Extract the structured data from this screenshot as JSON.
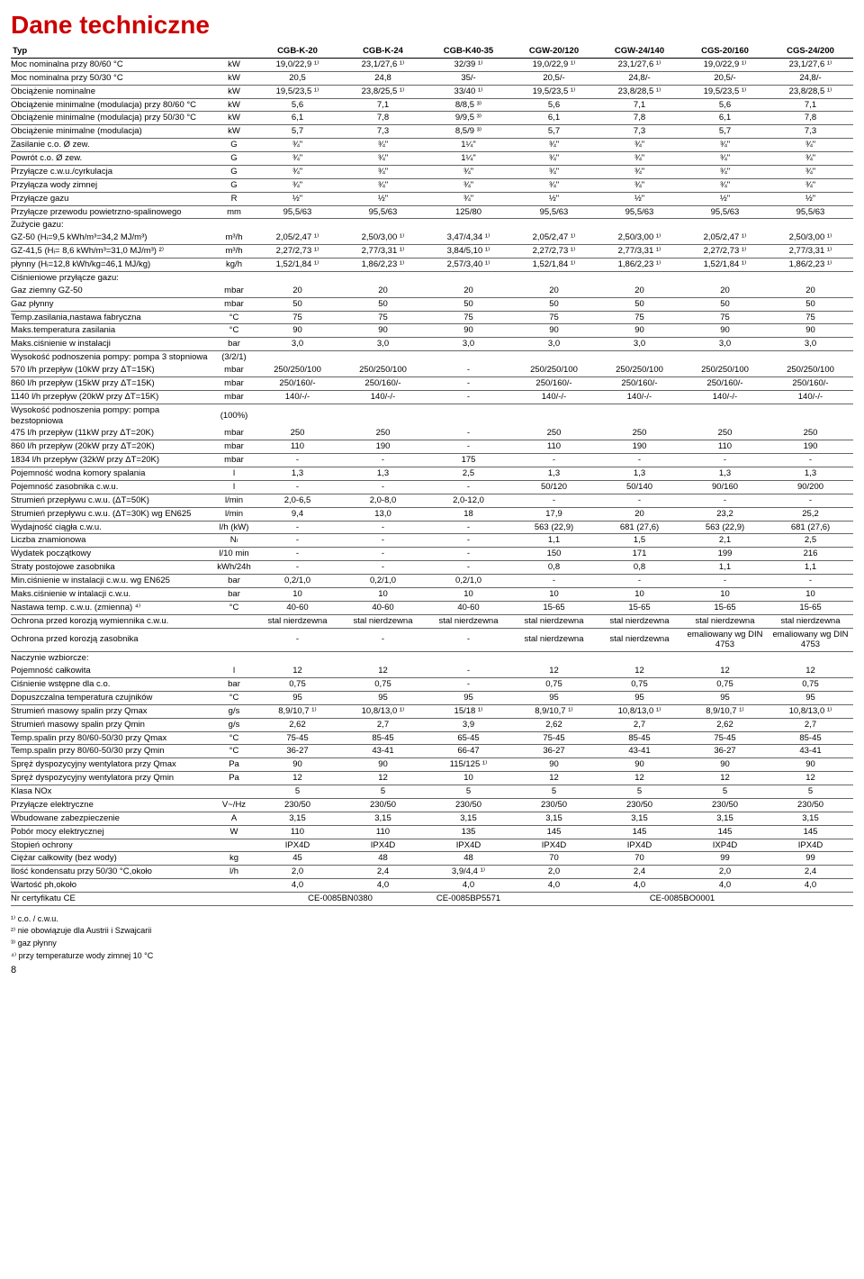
{
  "title": "Dane techniczne",
  "header": {
    "c0": "Typ",
    "c1": "",
    "c2": "CGB-K-20",
    "c3": "CGB-K-24",
    "c4": "CGB-K40-35",
    "c5": "CGW-20/120",
    "c6": "CGW-24/140",
    "c7": "CGS-20/160",
    "c8": "CGS-24/200"
  },
  "rows": [
    {
      "l": "Moc nominalna przy 80/60 °C",
      "u": "kW",
      "v": [
        "19,0/22,9 ¹⁾",
        "23,1/27,6 ¹⁾",
        "32/39 ¹⁾",
        "19,0/22,9 ¹⁾",
        "23,1/27,6 ¹⁾",
        "19,0/22,9 ¹⁾",
        "23,1/27,6 ¹⁾"
      ]
    },
    {
      "l": "Moc nominalna przy 50/30 °C",
      "u": "kW",
      "v": [
        "20,5",
        "24,8",
        "35/-",
        "20,5/-",
        "24,8/-",
        "20,5/-",
        "24,8/-"
      ]
    },
    {
      "l": "Obciążenie nominalne",
      "u": "kW",
      "v": [
        "19,5/23,5 ¹⁾",
        "23,8/25,5 ¹⁾",
        "33/40 ¹⁾",
        "19,5/23,5 ¹⁾",
        "23,8/28,5 ¹⁾",
        "19,5/23,5 ¹⁾",
        "23,8/28,5 ¹⁾"
      ]
    },
    {
      "l": "Obciążenie minimalne (modulacja) przy 80/60 °C",
      "u": "kW",
      "v": [
        "5,6",
        "7,1",
        "8/8,5 ³⁾",
        "5,6",
        "7,1",
        "5,6",
        "7,1"
      ]
    },
    {
      "l": "Obciążenie minimalne (modulacja) przy 50/30 °C",
      "u": "kW",
      "v": [
        "6,1",
        "7,8",
        "9/9,5 ³⁾",
        "6,1",
        "7,8",
        "6,1",
        "7,8"
      ]
    },
    {
      "l": "Obciążenie minimalne (modulacja)",
      "u": "kW",
      "v": [
        "5,7",
        "7,3",
        "8,5/9 ³⁾",
        "5,7",
        "7,3",
        "5,7",
        "7,3"
      ]
    },
    {
      "l": "Zasilanie c.o. Ø zew.",
      "u": "G",
      "v": [
        "¾\"",
        "¾\"",
        "1¼\"",
        "¾\"",
        "¾\"",
        "¾\"",
        "¾\""
      ]
    },
    {
      "l": "Powrót c.o. Ø zew.",
      "u": "G",
      "v": [
        "¾\"",
        "¾\"",
        "1¼\"",
        "¾\"",
        "¾\"",
        "¾\"",
        "¾\""
      ]
    },
    {
      "l": "Przyłącze c.w.u./cyrkulacja",
      "u": "G",
      "v": [
        "¾\"",
        "¾\"",
        "¾\"",
        "¾\"",
        "¾\"",
        "¾\"",
        "¾\""
      ]
    },
    {
      "l": "Przyłącza wody zimnej",
      "u": "G",
      "v": [
        "¾\"",
        "¾\"",
        "¾\"",
        "¾\"",
        "¾\"",
        "¾\"",
        "¾\""
      ]
    },
    {
      "l": "Przyłącze gazu",
      "u": "R",
      "v": [
        "½\"",
        "½\"",
        "¾\"",
        "½\"",
        "½\"",
        "½\"",
        "½\""
      ]
    },
    {
      "l": "Przyłącze przewodu powietrzno-spalinowego",
      "u": "mm",
      "v": [
        "95,5/63",
        "95,5/63",
        "125/80",
        "95,5/63",
        "95,5/63",
        "95,5/63",
        "95,5/63"
      ]
    },
    {
      "l": "Zużycie gazu:",
      "u": "",
      "v": [
        "",
        "",
        "",
        "",
        "",
        "",
        ""
      ],
      "nb": true
    },
    {
      "l": "GZ-50 (Hᵢ=9,5 kWh/m³=34,2 MJ/m³)",
      "u": "m³/h",
      "indent": true,
      "v": [
        "2,05/2,47 ¹⁾",
        "2,50/3,00 ¹⁾",
        "3,47/4,34 ¹⁾",
        "2,05/2,47 ¹⁾",
        "2,50/3,00 ¹⁾",
        "2,05/2,47 ¹⁾",
        "2,50/3,00 ¹⁾"
      ]
    },
    {
      "l": "GZ-41,5 (Hᵢ= 8,6 kWh/m³=31,0 MJ/m³) ²⁾",
      "u": "m³/h",
      "indent": true,
      "v": [
        "2,27/2,73 ¹⁾",
        "2,77/3,31 ¹⁾",
        "3,84/5,10 ¹⁾",
        "2,27/2,73 ¹⁾",
        "2,77/3,31 ¹⁾",
        "2,27/2,73 ¹⁾",
        "2,77/3,31 ¹⁾"
      ]
    },
    {
      "l": "płynny (Hᵢ=12,8 kWh/kg=46,1 MJ/kg)",
      "u": "kg/h",
      "indent": true,
      "v": [
        "1,52/1,84 ¹⁾",
        "1,86/2,23 ¹⁾",
        "2,57/3,40 ¹⁾",
        "1,52/1,84 ¹⁾",
        "1,86/2,23 ¹⁾",
        "1,52/1,84 ¹⁾",
        "1,86/2,23 ¹⁾"
      ]
    },
    {
      "l": "Ciśnieniowe przyłącze gazu:",
      "u": "",
      "v": [
        "",
        "",
        "",
        "",
        "",
        "",
        ""
      ],
      "nb": true
    },
    {
      "l": "Gaz ziemny GZ-50",
      "u": "mbar",
      "indent": true,
      "v": [
        "20",
        "20",
        "20",
        "20",
        "20",
        "20",
        "20"
      ]
    },
    {
      "l": "Gaz płynny",
      "u": "mbar",
      "indent": true,
      "v": [
        "50",
        "50",
        "50",
        "50",
        "50",
        "50",
        "50"
      ]
    },
    {
      "l": "Temp.zasilania,nastawa fabryczna",
      "u": "°C",
      "v": [
        "75",
        "75",
        "75",
        "75",
        "75",
        "75",
        "75"
      ]
    },
    {
      "l": "Maks.temperatura zasilania",
      "u": "°C",
      "v": [
        "90",
        "90",
        "90",
        "90",
        "90",
        "90",
        "90"
      ]
    },
    {
      "l": "Maks.ciśnienie w instalacji",
      "u": "bar",
      "v": [
        "3,0",
        "3,0",
        "3,0",
        "3,0",
        "3,0",
        "3,0",
        "3,0"
      ]
    },
    {
      "l": "Wysokość podnoszenia pompy: pompa 3 stopniowa",
      "u": "(3/2/1)",
      "v": [
        "",
        "",
        "",
        "",
        "",
        "",
        ""
      ],
      "nb": true
    },
    {
      "l": "570 l/h przepływ (10kW przy ΔT=15K)",
      "u": "mbar",
      "indent": true,
      "v": [
        "250/250/100",
        "250/250/100",
        "-",
        "250/250/100",
        "250/250/100",
        "250/250/100",
        "250/250/100"
      ]
    },
    {
      "l": "860 l/h przepływ (15kW przy ΔT=15K)",
      "u": "mbar",
      "indent": true,
      "v": [
        "250/160/-",
        "250/160/-",
        "-",
        "250/160/-",
        "250/160/-",
        "250/160/-",
        "250/160/-"
      ]
    },
    {
      "l": "1140 l/h przepływ (20kW przy ΔT=15K)",
      "u": "mbar",
      "indent": true,
      "v": [
        "140/-/-",
        "140/-/-",
        "-",
        "140/-/-",
        "140/-/-",
        "140/-/-",
        "140/-/-"
      ]
    },
    {
      "l": "Wysokość podnoszenia pompy: pompa bezstopniowa",
      "u": "(100%)",
      "v": [
        "",
        "",
        "",
        "",
        "",
        "",
        ""
      ],
      "nb": true
    },
    {
      "l": "475 l/h przepływ (11kW przy ΔT=20K)",
      "u": "mbar",
      "indent": true,
      "v": [
        "250",
        "250",
        "-",
        "250",
        "250",
        "250",
        "250"
      ]
    },
    {
      "l": "860 l/h przepływ (20kW przy ΔT=20K)",
      "u": "mbar",
      "indent": true,
      "v": [
        "110",
        "190",
        "-",
        "110",
        "190",
        "110",
        "190"
      ]
    },
    {
      "l": "1834 l/h przepływ (32kW przy ΔT=20K)",
      "u": "mbar",
      "indent": true,
      "v": [
        "-",
        "-",
        "175",
        "-",
        "-",
        "-",
        "-"
      ]
    },
    {
      "l": "Pojemność wodna komory spalania",
      "u": "l",
      "v": [
        "1,3",
        "1,3",
        "2,5",
        "1,3",
        "1,3",
        "1,3",
        "1,3"
      ]
    },
    {
      "l": "Pojemność zasobnika c.w.u.",
      "u": "l",
      "v": [
        "-",
        "-",
        "-",
        "50/120",
        "50/140",
        "90/160",
        "90/200"
      ]
    },
    {
      "l": "Strumień przepływu c.w.u. (ΔT=50K)",
      "u": "l/min",
      "v": [
        "2,0-6,5",
        "2,0-8,0",
        "2,0-12,0",
        "-",
        "-",
        "-",
        "-"
      ]
    },
    {
      "l": "Strumień przepływu c.w.u. (ΔT=30K) wg EN625",
      "u": "l/min",
      "v": [
        "9,4",
        "13,0",
        "18",
        "17,9",
        "20",
        "23,2",
        "25,2"
      ]
    },
    {
      "l": "Wydajność ciągła c.w.u.",
      "u": "l/h (kW)",
      "v": [
        "-",
        "-",
        "-",
        "563 (22,9)",
        "681 (27,6)",
        "563 (22,9)",
        "681 (27,6)"
      ]
    },
    {
      "l": "Liczba znamionowa",
      "u": "Nₗ",
      "v": [
        "-",
        "-",
        "-",
        "1,1",
        "1,5",
        "2,1",
        "2,5"
      ]
    },
    {
      "l": "Wydatek początkowy",
      "u": "l/10 min",
      "v": [
        "-",
        "-",
        "-",
        "150",
        "171",
        "199",
        "216"
      ]
    },
    {
      "l": "Straty postojowe zasobnika",
      "u": "kWh/24h",
      "v": [
        "-",
        "-",
        "-",
        "0,8",
        "0,8",
        "1,1",
        "1,1"
      ]
    },
    {
      "l": "Min.ciśnienie w instalacji c.w.u. wg EN625",
      "u": "bar",
      "v": [
        "0,2/1,0",
        "0,2/1,0",
        "0,2/1,0",
        "-",
        "-",
        "-",
        "-"
      ]
    },
    {
      "l": "Maks.ciśnienie w intalacji c.w.u.",
      "u": "bar",
      "v": [
        "10",
        "10",
        "10",
        "10",
        "10",
        "10",
        "10"
      ]
    },
    {
      "l": "Nastawa temp. c.w.u. (zmienna) ⁴⁾",
      "u": "°C",
      "v": [
        "40-60",
        "40-60",
        "40-60",
        "15-65",
        "15-65",
        "15-65",
        "15-65"
      ]
    },
    {
      "l": "Ochrona przed korozją wymiennika c.w.u.",
      "u": "",
      "v": [
        "stal nierdzewna",
        "stal nierdzewna",
        "stal nierdzewna",
        "stal nierdzewna",
        "stal nierdzewna",
        "stal nierdzewna",
        "stal nierdzewna"
      ]
    },
    {
      "l": "Ochrona przed korozją zasobnika",
      "u": "",
      "v": [
        "-",
        "-",
        "-",
        "stal nierdzewna",
        "stal nierdzewna",
        "emaliowany wg DIN 4753",
        "emaliowany wg DIN 4753"
      ],
      "wrap": true
    },
    {
      "l": "Naczynie wzbiorcze:",
      "u": "",
      "v": [
        "",
        "",
        "",
        "",
        "",
        "",
        ""
      ],
      "nb": true
    },
    {
      "l": "Pojemność całkowita",
      "u": "l",
      "indent": true,
      "v": [
        "12",
        "12",
        "-",
        "12",
        "12",
        "12",
        "12"
      ]
    },
    {
      "l": "Ciśnienie wstępne dla c.o.",
      "u": "bar",
      "indent": true,
      "v": [
        "0,75",
        "0,75",
        "-",
        "0,75",
        "0,75",
        "0,75",
        "0,75"
      ]
    },
    {
      "l": "Dopuszczalna temperatura czujników",
      "u": "°C",
      "v": [
        "95",
        "95",
        "95",
        "95",
        "95",
        "95",
        "95"
      ]
    },
    {
      "l": "Strumień masowy spalin przy Qmax",
      "u": "g/s",
      "v": [
        "8,9/10,7 ¹⁾",
        "10,8/13,0 ¹⁾",
        "15/18 ¹⁾",
        "8,9/10,7 ¹⁾",
        "10,8/13,0 ¹⁾",
        "8,9/10,7 ¹⁾",
        "10,8/13,0 ¹⁾"
      ]
    },
    {
      "l": "Strumień masowy spalin przy Qmin",
      "u": "g/s",
      "v": [
        "2,62",
        "2,7",
        "3,9",
        "2,62",
        "2,7",
        "2,62",
        "2,7"
      ]
    },
    {
      "l": "Temp.spalin przy 80/60-50/30 przy Qmax",
      "u": "°C",
      "v": [
        "75-45",
        "85-45",
        "65-45",
        "75-45",
        "85-45",
        "75-45",
        "85-45"
      ]
    },
    {
      "l": "Temp.spalin przy 80/60-50/30 przy Qmin",
      "u": "°C",
      "v": [
        "36-27",
        "43-41",
        "66-47",
        "36-27",
        "43-41",
        "36-27",
        "43-41"
      ]
    },
    {
      "l": "Spręż dyspozycyjny wentylatora przy Qmax",
      "u": "Pa",
      "v": [
        "90",
        "90",
        "115/125 ¹⁾",
        "90",
        "90",
        "90",
        "90"
      ]
    },
    {
      "l": "Spręż dyspozycyjny wentylatora przy Qmin",
      "u": "Pa",
      "v": [
        "12",
        "12",
        "10",
        "12",
        "12",
        "12",
        "12"
      ]
    },
    {
      "l": "Klasa NOx",
      "u": "",
      "v": [
        "5",
        "5",
        "5",
        "5",
        "5",
        "5",
        "5"
      ]
    },
    {
      "l": "Przyłącze elektryczne",
      "u": "V~/Hz",
      "v": [
        "230/50",
        "230/50",
        "230/50",
        "230/50",
        "230/50",
        "230/50",
        "230/50"
      ]
    },
    {
      "l": "Wbudowane zabezpieczenie",
      "u": "A",
      "v": [
        "3,15",
        "3,15",
        "3,15",
        "3,15",
        "3,15",
        "3,15",
        "3,15"
      ]
    },
    {
      "l": "Pobór mocy elektrycznej",
      "u": "W",
      "v": [
        "110",
        "110",
        "135",
        "145",
        "145",
        "145",
        "145"
      ]
    },
    {
      "l": "Stopień ochrony",
      "u": "",
      "v": [
        "IPX4D",
        "IPX4D",
        "IPX4D",
        "IPX4D",
        "IPX4D",
        "IXP4D",
        "IPX4D"
      ]
    },
    {
      "l": "Ciężar całkowity (bez wody)",
      "u": "kg",
      "v": [
        "45",
        "48",
        "48",
        "70",
        "70",
        "99",
        "99"
      ]
    },
    {
      "l": "Ilość kondensatu przy 50/30 °C,około",
      "u": "l/h",
      "v": [
        "2,0",
        "2,4",
        "3,9/4,4 ¹⁾",
        "2,0",
        "2,4",
        "2,0",
        "2,4"
      ]
    },
    {
      "l": "Wartość ph,około",
      "u": "",
      "v": [
        "4,0",
        "4,0",
        "4,0",
        "4,0",
        "4,0",
        "4,0",
        "4,0"
      ]
    }
  ],
  "ce_row": {
    "l": "Nr certyfikatu CE",
    "u": "",
    "a": "CE-0085BN0380",
    "b": "CE-0085BP5571",
    "c": "CE-0085BO0001"
  },
  "footnotes": [
    "¹⁾ c.o. / c.w.u.",
    "²⁾ nie obowiązuje dla Austrii i Szwajcarii",
    "³⁾ gaz płynny",
    "⁴⁾ przy temperaturze wody zimnej 10 °C"
  ],
  "pagenum": "8"
}
